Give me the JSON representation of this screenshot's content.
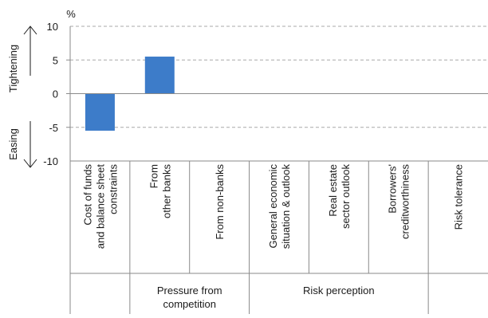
{
  "chart_data": {
    "type": "bar",
    "unit_label": "%",
    "ylim": [
      -10,
      10
    ],
    "yticks": [
      10,
      5,
      0,
      -5,
      -10
    ],
    "grid": true,
    "bar_color": "#3d7cc9",
    "categories": [
      {
        "lines": [
          "Cost of funds",
          "and balance sheet",
          "constraints"
        ]
      },
      {
        "lines": [
          "From",
          "other banks"
        ]
      },
      {
        "lines": [
          "From non-banks"
        ]
      },
      {
        "lines": [
          "General economic",
          "situation & outlook"
        ]
      },
      {
        "lines": [
          "Real estate",
          "sector outlook"
        ]
      },
      {
        "lines": [
          "Borrowers'",
          "creditworthiness"
        ]
      },
      {
        "lines": [
          "Risk tolerance"
        ]
      }
    ],
    "values": [
      -5.5,
      5.5,
      0,
      0,
      0,
      0,
      0
    ],
    "groups": [
      {
        "lines": [],
        "span": [
          0,
          0
        ]
      },
      {
        "lines": [
          "Pressure from",
          "competition"
        ],
        "span": [
          1,
          2
        ]
      },
      {
        "lines": [
          "Risk perception"
        ],
        "span": [
          3,
          5
        ]
      },
      {
        "lines": [],
        "span": [
          6,
          6
        ]
      }
    ],
    "direction_labels": {
      "up": "Tightening",
      "down": "Easing"
    }
  }
}
